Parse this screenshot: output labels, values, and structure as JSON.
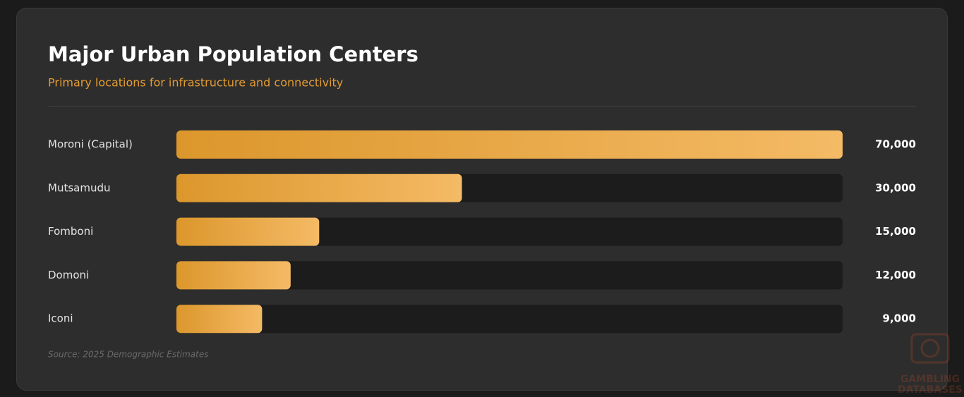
{
  "chart_data": {
    "type": "hbar",
    "title": "Major Urban Population Centers",
    "subtitle": "Primary locations for infrastructure and connectivity",
    "categories": [
      "Moroni (Capital)",
      "Mutsamudu",
      "Fomboni",
      "Domoni",
      "Iconi"
    ],
    "values": [
      70000,
      30000,
      15000,
      12000,
      9000
    ],
    "value_labels": [
      "70,000",
      "30,000",
      "15,000",
      "12,000",
      "9,000"
    ],
    "xlim": [
      0,
      70000
    ],
    "gradient": [
      "#dc972c",
      "#f4ba65"
    ],
    "track_color": "#1c1c1c",
    "source": "Source: 2025 Demographic Estimates",
    "watermark": [
      "GAMBLING",
      "DATABASES"
    ]
  }
}
